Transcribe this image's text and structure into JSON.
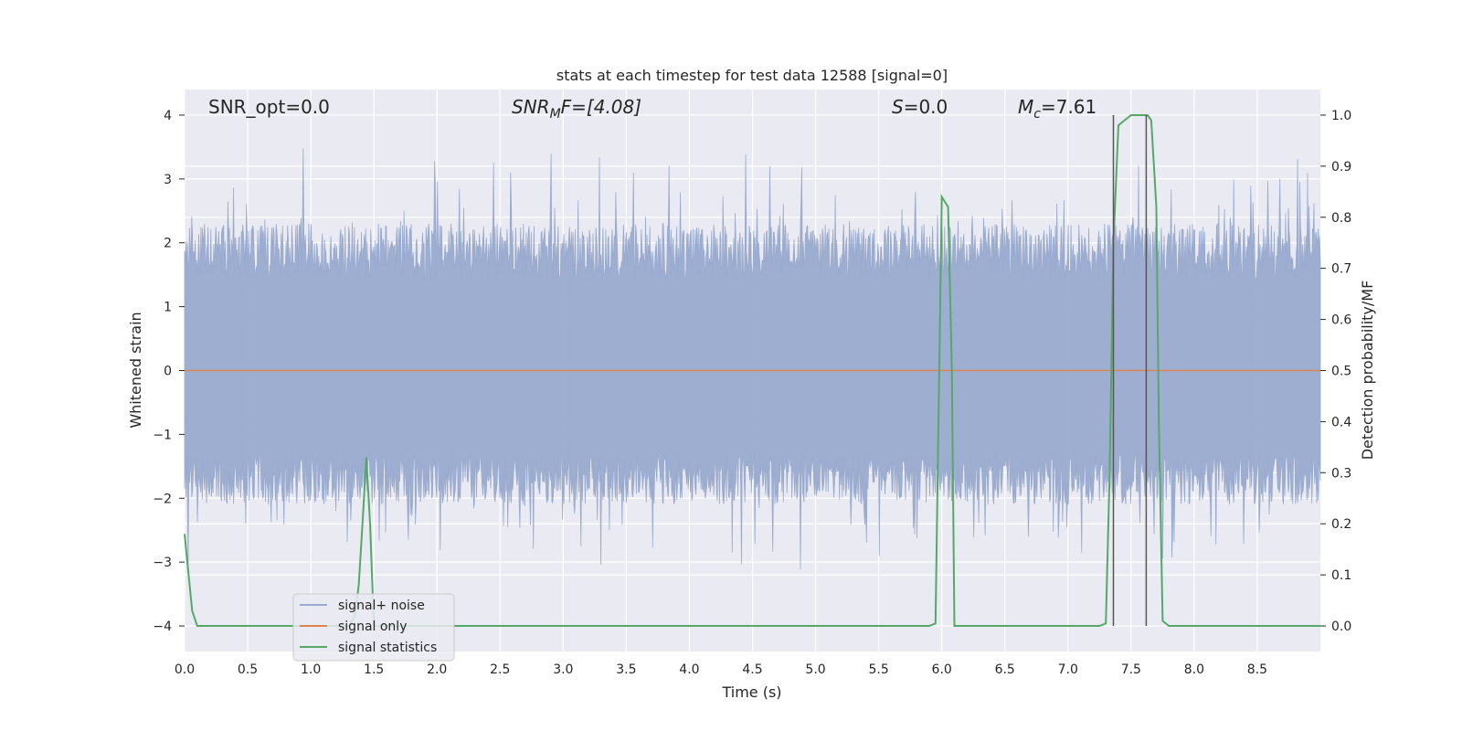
{
  "chart_data": {
    "type": "line",
    "title": "stats at each timestep for test data 12588 [signal=0]",
    "xlabel": "Time (s)",
    "ylabel_left": "Whitened strain",
    "ylabel_right": "Detection probability/MF",
    "xlim": [
      0.0,
      9.0
    ],
    "ylim_left": [
      -4.4,
      4.4
    ],
    "ylim_right": [
      -0.05,
      1.05
    ],
    "x_ticks": [
      "0.0",
      "0.5",
      "1.0",
      "1.5",
      "2.0",
      "2.5",
      "3.0",
      "3.5",
      "4.0",
      "4.5",
      "5.0",
      "5.5",
      "6.0",
      "6.5",
      "7.0",
      "7.5",
      "8.0",
      "8.5"
    ],
    "y_left_ticks": [
      "4",
      "3",
      "2",
      "1",
      "0",
      "−1",
      "−2",
      "−3",
      "−4"
    ],
    "y_right_ticks": [
      "1.0",
      "0.9",
      "0.8",
      "0.7",
      "0.6",
      "0.5",
      "0.4",
      "0.3",
      "0.2",
      "0.1",
      "0.0"
    ],
    "grid": true,
    "legend_position": "lower-left",
    "annotations": {
      "snr_opt": "SNR_opt=0.0",
      "snr_mf_main": "SNR",
      "snr_mf_sub": "M",
      "snr_mf_rest": "F=[4.08]",
      "s_main": "S",
      "s_rest": "=0.0",
      "mc_main": "M",
      "mc_sub": "c",
      "mc_rest": "=7.61"
    },
    "series": [
      {
        "name": "signal+ noise",
        "color": "#9aabcf",
        "description_values": "whitened strain noise, approx. symmetric about 0 with peaks up to 3.8 and down to -3.4"
      },
      {
        "name": "signal only",
        "color": "#dd8452",
        "values_constant": 0.0
      },
      {
        "name": "signal statistics",
        "color": "#55a868",
        "x": [
          0.0,
          0.06,
          0.1,
          0.15,
          0.2,
          0.5,
          1.0,
          1.3,
          1.35,
          1.38,
          1.41,
          1.44,
          1.47,
          1.5,
          1.55,
          1.6,
          2.0,
          3.0,
          4.0,
          5.0,
          5.5,
          5.9,
          5.95,
          6.0,
          6.05,
          6.08,
          6.1,
          6.13,
          6.2,
          7.0,
          7.25,
          7.3,
          7.33,
          7.36,
          7.4,
          7.45,
          7.5,
          7.55,
          7.6,
          7.63,
          7.66,
          7.7,
          7.72,
          7.75,
          7.8,
          8.0,
          9.0
        ],
        "values": [
          0.18,
          0.03,
          0.0,
          0.0,
          0.0,
          0.0,
          0.0,
          0.0,
          0.02,
          0.08,
          0.2,
          0.33,
          0.2,
          0.0,
          0.0,
          0.0,
          0.0,
          0.0,
          0.0,
          0.0,
          0.0,
          0.0,
          0.005,
          0.84,
          0.82,
          0.5,
          0.0,
          0.0,
          0.0,
          0.0,
          0.0,
          0.005,
          0.3,
          0.75,
          0.98,
          0.99,
          1.0,
          1.0,
          1.0,
          1.0,
          0.99,
          0.82,
          0.4,
          0.01,
          0.0,
          0.0,
          0.0
        ]
      }
    ],
    "vertical_lines": [
      7.36,
      7.62
    ],
    "vertical_line_color": "#555555"
  }
}
